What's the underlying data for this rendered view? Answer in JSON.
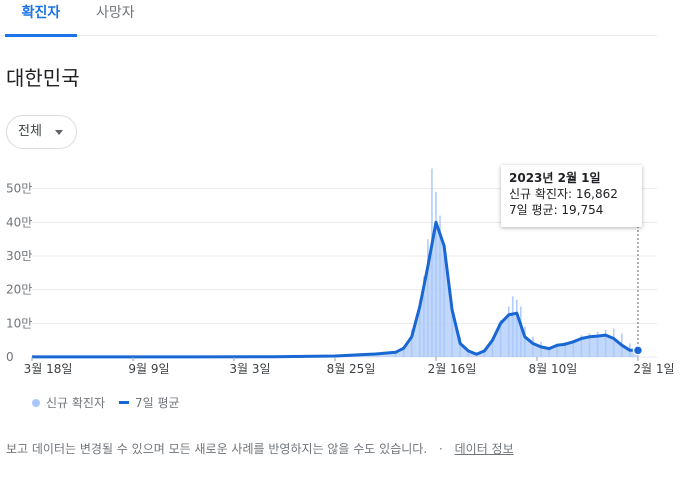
{
  "tabs": [
    {
      "label": "확진자",
      "active": true
    },
    {
      "label": "사망자",
      "active": false
    }
  ],
  "region_title": "대한민국",
  "filter": {
    "selected": "전체"
  },
  "tooltip": {
    "date": "2023년 2월 1일",
    "cases_line": "신규 확진자: 16,862",
    "avg_line": "7일 평균: 19,754"
  },
  "legend": {
    "bars_label": "신규 확진자",
    "line_label": "7일 평균"
  },
  "footer": {
    "notice": "보고 데이터는 변경될 수 있으며 모든 새로운 사례를 반영하지는 않을 수도 있습니다.",
    "separator": "·",
    "link": "데이터 정보"
  },
  "colors": {
    "accent": "#1a73e8",
    "bars": "#a8c7fa",
    "line": "#1967d2"
  },
  "chart_data": {
    "type": "area",
    "ylim": [
      0,
      600000
    ],
    "y_ticks": [
      0,
      100000,
      200000,
      300000,
      400000,
      500000
    ],
    "y_tick_labels": [
      "0",
      "10만",
      "20만",
      "30만",
      "40만",
      "50만"
    ],
    "x_tick_labels": [
      "3월 18일",
      "9월 9일",
      "3월 3일",
      "8월 25일",
      "2월 16일",
      "8월 10일",
      "2월 1일"
    ],
    "x_ticks": [
      0,
      25,
      50,
      75,
      100,
      125,
      150
    ],
    "series": [
      {
        "name": "7일 평균",
        "x": [
          0,
          20,
          40,
          60,
          75,
          85,
          90,
          92,
          94,
          96,
          98,
          100,
          102,
          104,
          106,
          108,
          110,
          112,
          114,
          116,
          118,
          120,
          122,
          124,
          126,
          128,
          130,
          132,
          134,
          136,
          138,
          140,
          142,
          144,
          146,
          148,
          150
        ],
        "values": [
          200,
          200,
          300,
          800,
          3000,
          9000,
          14000,
          26000,
          60000,
          150000,
          270000,
          400000,
          330000,
          140000,
          40000,
          18000,
          8000,
          18000,
          50000,
          100000,
          125000,
          130000,
          60000,
          40000,
          30000,
          25000,
          35000,
          38000,
          45000,
          55000,
          60000,
          62000,
          65000,
          55000,
          35000,
          20000,
          19754
        ]
      },
      {
        "name": "신규 확진자",
        "x": [
          90,
          92,
          94,
          96,
          97,
          98,
          99,
          100,
          101,
          102,
          104,
          106,
          108,
          112,
          114,
          116,
          118,
          119,
          120,
          121,
          122,
          124,
          126,
          128,
          130,
          132,
          134,
          136,
          138,
          140,
          142,
          144,
          146,
          148,
          150
        ],
        "values": [
          15000,
          30000,
          80000,
          170000,
          240000,
          350000,
          560000,
          490000,
          420000,
          300000,
          160000,
          60000,
          22000,
          25000,
          60000,
          110000,
          150000,
          180000,
          170000,
          150000,
          90000,
          60000,
          45000,
          30000,
          40000,
          45000,
          50000,
          65000,
          70000,
          75000,
          80000,
          85000,
          70000,
          40000,
          16862
        ]
      }
    ],
    "selected_point": {
      "x": 150,
      "value": 19754
    }
  }
}
